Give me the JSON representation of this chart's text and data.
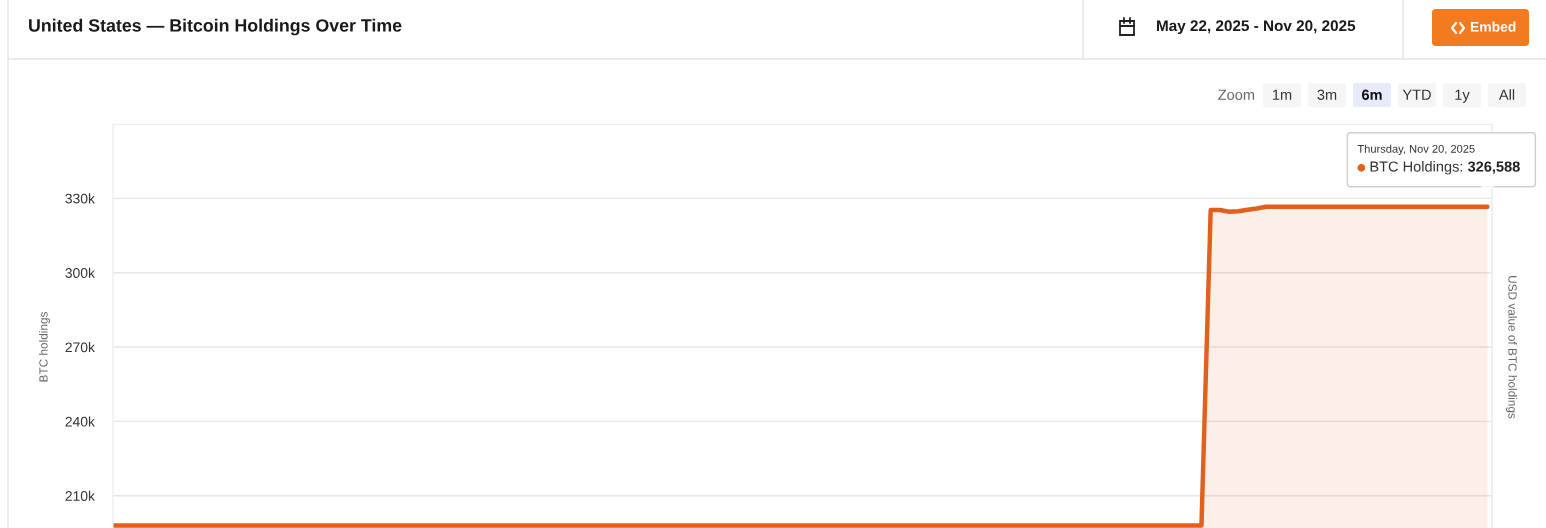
{
  "chart_data": {
    "type": "area",
    "title": "United States — Bitcoin Holdings Over Time",
    "subtitle": "May 22, 2025 - Nov 20, 2025",
    "ylabel": "BTC holdings",
    "y2label": "USD value of BTC holdings",
    "categories": [
      null,
      null,
      null,
      null,
      null,
      null,
      null,
      null,
      null,
      null,
      null,
      null,
      null,
      null,
      null,
      null,
      null,
      null,
      null,
      null,
      null,
      null,
      null,
      null,
      null,
      null,
      null,
      null,
      null,
      null,
      null,
      null,
      null,
      null,
      null,
      null,
      null,
      null,
      null,
      null,
      null,
      null,
      null,
      null,
      null,
      null,
      null,
      null,
      null,
      null,
      null,
      null,
      null,
      null,
      null,
      null,
      null,
      null,
      null,
      null,
      null,
      null,
      null,
      null,
      null,
      null,
      null,
      null,
      null,
      null,
      null,
      null,
      null,
      null,
      null,
      null,
      null,
      null,
      null,
      null,
      null,
      null,
      null,
      null,
      null,
      null,
      null,
      null,
      null,
      null,
      null,
      null,
      null,
      null,
      null,
      null,
      null,
      null,
      null,
      null,
      null,
      null,
      null,
      null,
      null,
      null,
      null,
      null,
      null,
      null,
      null,
      null,
      null,
      null,
      null,
      null,
      null,
      null,
      null,
      null,
      null,
      null,
      null,
      null,
      null,
      null,
      null,
      null,
      null,
      null,
      null,
      null,
      null,
      null,
      null,
      null,
      null,
      null,
      null,
      null,
      null,
      null,
      null,
      null,
      null,
      null,
      null,
      null,
      null,
      null
    ],
    "series": [
      {
        "name": "BTC Holdings:",
        "color": "#e2601d",
        "values": [
          198000,
          198000,
          198000,
          198000,
          198000,
          198000,
          198000,
          198000,
          198000,
          198000,
          198000,
          198000,
          198000,
          198000,
          198000,
          198000,
          198000,
          198000,
          198000,
          198000,
          198000,
          198000,
          198000,
          198000,
          198000,
          198000,
          198000,
          198000,
          198000,
          198000,
          198000,
          198000,
          198000,
          198000,
          198000,
          198000,
          198000,
          198000,
          198000,
          198000,
          198000,
          198000,
          198000,
          198000,
          198000,
          198000,
          198000,
          198000,
          198000,
          198000,
          198000,
          198000,
          198000,
          198000,
          198000,
          198000,
          198000,
          198000,
          198000,
          198000,
          198000,
          198000,
          198000,
          198000,
          198000,
          198000,
          198000,
          198000,
          198000,
          198000,
          198000,
          198000,
          198000,
          198000,
          198000,
          198000,
          198000,
          198000,
          198000,
          198000,
          198000,
          198000,
          198000,
          198000,
          198000,
          198000,
          198000,
          198000,
          198000,
          198000,
          198000,
          198000,
          198000,
          198000,
          198000,
          198000,
          198000,
          198000,
          198000,
          198000,
          198000,
          198000,
          198000,
          198000,
          198000,
          198000,
          198000,
          198000,
          198000,
          198000,
          198000,
          198000,
          198000,
          198000,
          198000,
          198000,
          198000,
          198000,
          198000,
          325300,
          325300,
          324600,
          324800,
          325400,
          325900,
          326600,
          326600,
          326600,
          326600,
          326600,
          326600,
          326600,
          326600,
          326600,
          326600,
          326600,
          326600,
          326600,
          326600,
          326600,
          326600,
          326600,
          326600,
          326600,
          326600,
          326600,
          326600,
          326600,
          326600,
          326588
        ],
        "value_labels": [
          null,
          null,
          null,
          null,
          null,
          null,
          null,
          null,
          null,
          null,
          null,
          null,
          null,
          null,
          null,
          null,
          null,
          null,
          null,
          null,
          null,
          null,
          null,
          null,
          null,
          null,
          null,
          null,
          null,
          null,
          null,
          null,
          null,
          null,
          null,
          null,
          null,
          null,
          null,
          null,
          null,
          null,
          null,
          null,
          null,
          null,
          null,
          null,
          null,
          null,
          null,
          null,
          null,
          null,
          null,
          null,
          null,
          null,
          null,
          null,
          null,
          null,
          null,
          null,
          null,
          null,
          null,
          null,
          null,
          null,
          null,
          null,
          null,
          null,
          null,
          null,
          null,
          null,
          null,
          null,
          null,
          null,
          null,
          null,
          null,
          null,
          null,
          null,
          null,
          null,
          null,
          null,
          null,
          null,
          null,
          null,
          null,
          null,
          null,
          null,
          null,
          null,
          null,
          null,
          null,
          null,
          null,
          null,
          null,
          null,
          null,
          null,
          null,
          null,
          null,
          null,
          null,
          null,
          null,
          null,
          null,
          null,
          null,
          null,
          null,
          null,
          null,
          null,
          null,
          null,
          null,
          null,
          null,
          null,
          null,
          null,
          null,
          null,
          null,
          null,
          null,
          null,
          null,
          null,
          null,
          null,
          null,
          null,
          null,
          "326,588"
        ]
      }
    ],
    "ylim": [
      197000,
      360000
    ],
    "yticks": [
      {
        "value": 210000,
        "label": "210k"
      },
      {
        "value": 240000,
        "label": "240k"
      },
      {
        "value": 270000,
        "label": "270k"
      },
      {
        "value": 300000,
        "label": "300k"
      },
      {
        "value": 330000,
        "label": "330k"
      },
      {
        "value": 360000,
        "label": null
      }
    ],
    "grid": "y",
    "tick_labels": "y",
    "annotations": [
      "Thursday, Nov 20, 2025",
      "Zoom",
      "1m",
      "3m",
      "6m",
      "YTD",
      "1y",
      "All",
      "Embed"
    ]
  }
}
